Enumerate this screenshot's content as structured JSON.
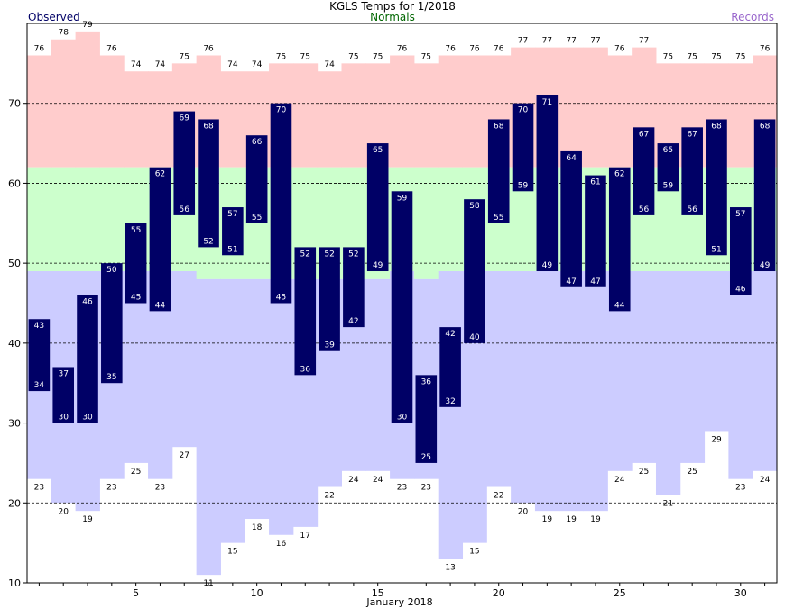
{
  "title": "KGLS Temps for 1/2018",
  "legend": {
    "observed": "Observed",
    "normals": "Normals",
    "records": "Records"
  },
  "colors": {
    "observed": "#000066",
    "normals_label": "#006600",
    "records_label": "#9966cc",
    "record_high_band": "#ffcccc",
    "normal_band": "#ccffcc",
    "record_low_band": "#ccccff",
    "background": "#ffffff"
  },
  "chart_data": {
    "type": "bar",
    "title": "KGLS Temps for 1/2018",
    "xlabel": "January 2018",
    "ylabel": "",
    "x": [
      1,
      2,
      3,
      4,
      5,
      6,
      7,
      8,
      9,
      10,
      11,
      12,
      13,
      14,
      15,
      16,
      17,
      18,
      19,
      20,
      21,
      22,
      23,
      24,
      25,
      26,
      27,
      28,
      29,
      30,
      31
    ],
    "xlim": [
      0.5,
      31.5
    ],
    "ylim": [
      10,
      80
    ],
    "xticks": [
      5,
      10,
      15,
      20,
      25,
      30
    ],
    "yticks": [
      10,
      20,
      30,
      40,
      50,
      60,
      70
    ],
    "grid_lines_y": [
      20,
      30,
      40,
      50,
      60,
      70
    ],
    "grid": "dashed horizontal",
    "series": [
      {
        "name": "Observed",
        "high": [
          43,
          37,
          46,
          50,
          55,
          62,
          69,
          68,
          57,
          66,
          70,
          52,
          52,
          52,
          65,
          59,
          36,
          42,
          58,
          68,
          70,
          71,
          64,
          61,
          62,
          67,
          65,
          67,
          68,
          57,
          68
        ],
        "low": [
          34,
          30,
          30,
          35,
          45,
          44,
          56,
          52,
          51,
          55,
          45,
          36,
          39,
          42,
          49,
          30,
          25,
          32,
          40,
          55,
          59,
          49,
          47,
          47,
          44,
          56,
          59,
          56,
          51,
          46,
          49
        ]
      },
      {
        "name": "Normals",
        "high": [
          62,
          62,
          62,
          62,
          62,
          62,
          62,
          62,
          62,
          62,
          62,
          62,
          62,
          62,
          62,
          62,
          62,
          62,
          62,
          62,
          62,
          62,
          62,
          62,
          62,
          62,
          62,
          62,
          62,
          62,
          62
        ],
        "low": [
          49,
          49,
          49,
          49,
          49,
          49,
          49,
          48,
          48,
          48,
          48,
          48,
          48,
          48,
          48,
          49,
          48,
          49,
          49,
          49,
          49,
          49,
          49,
          49,
          49,
          49,
          49,
          49,
          49,
          49,
          49
        ]
      },
      {
        "name": "Records",
        "high": [
          76,
          78,
          79,
          76,
          74,
          74,
          75,
          76,
          74,
          74,
          75,
          75,
          74,
          75,
          75,
          76,
          75,
          76,
          76,
          76,
          77,
          77,
          77,
          77,
          76,
          77,
          75,
          75,
          75,
          75,
          76
        ],
        "low": [
          23,
          20,
          19,
          23,
          25,
          23,
          27,
          11,
          15,
          18,
          16,
          17,
          22,
          24,
          24,
          23,
          23,
          13,
          15,
          22,
          20,
          19,
          19,
          19,
          24,
          25,
          21,
          25,
          29,
          23,
          24
        ]
      }
    ]
  }
}
